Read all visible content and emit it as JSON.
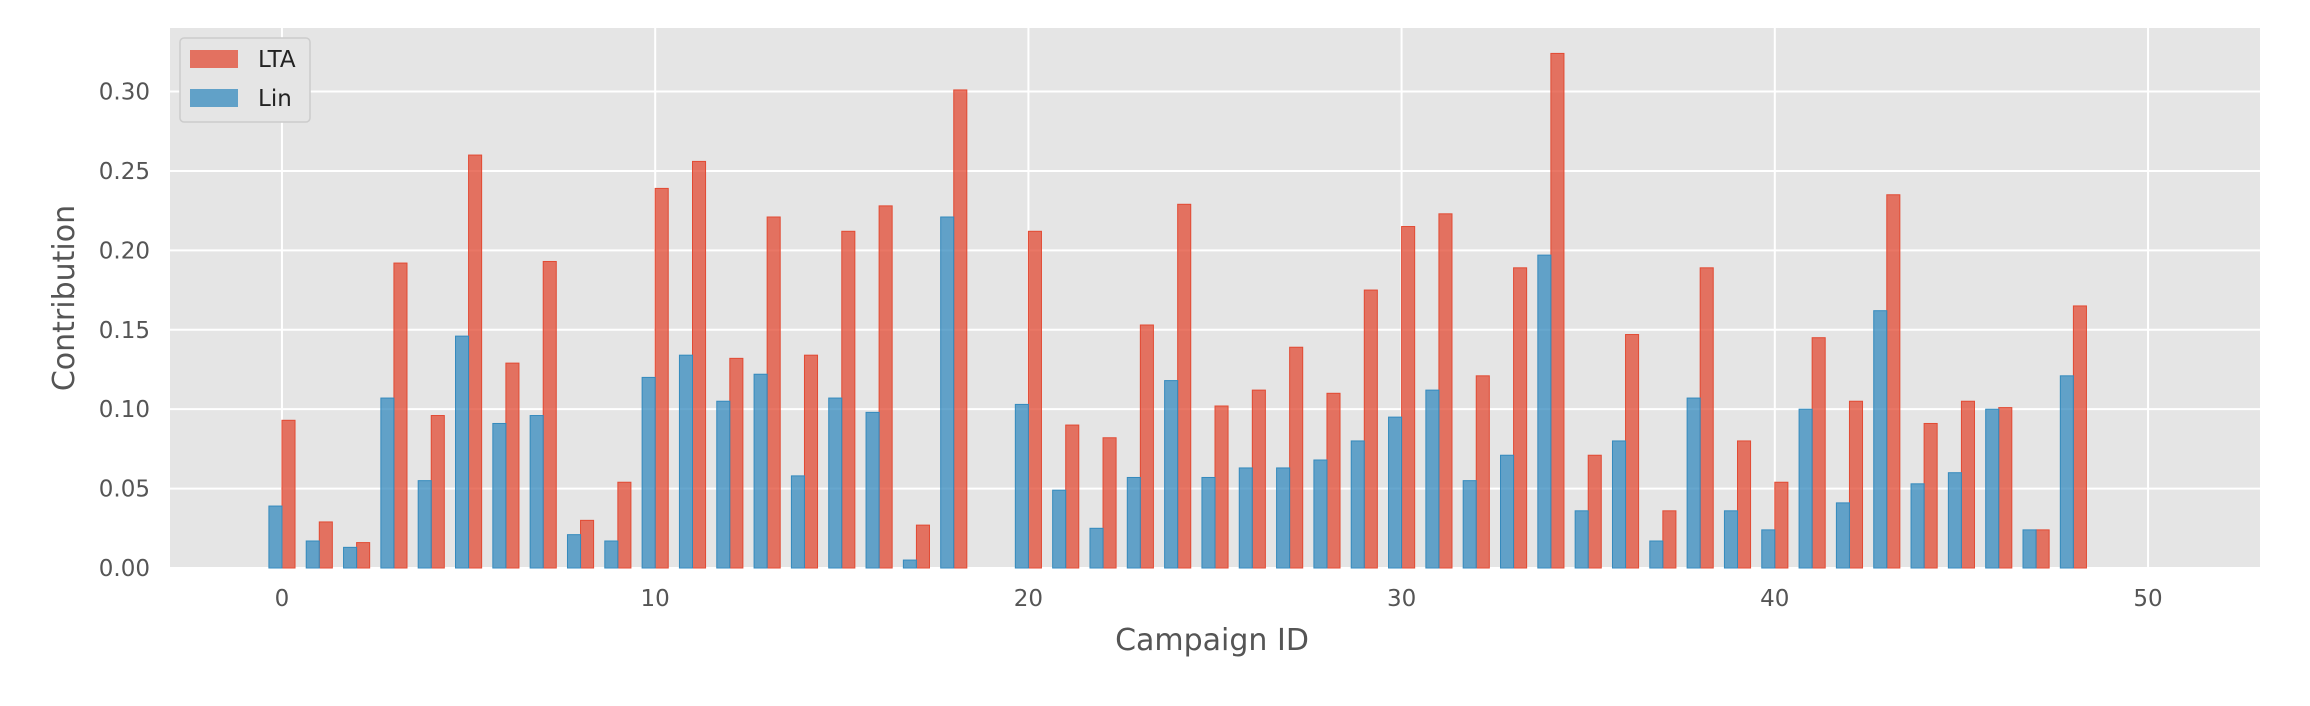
{
  "chart_data": {
    "type": "bar",
    "title": "",
    "xlabel": "Campaign ID",
    "ylabel": "Contribution",
    "xlim": [
      -3,
      53
    ],
    "ylim": [
      0,
      0.34
    ],
    "xticks": [
      "0",
      "10",
      "20",
      "30",
      "40",
      "50"
    ],
    "yticks": [
      "0.00",
      "0.05",
      "0.10",
      "0.15",
      "0.20",
      "0.25",
      "0.30"
    ],
    "grid": true,
    "legend_position": "top-left",
    "x": [
      0,
      1,
      2,
      3,
      4,
      5,
      6,
      7,
      8,
      9,
      10,
      11,
      12,
      13,
      14,
      15,
      16,
      17,
      18,
      19,
      20,
      21,
      22,
      23,
      24,
      25,
      26,
      27,
      28,
      29,
      30,
      31,
      32,
      33,
      34,
      35,
      36,
      37,
      38,
      39,
      40,
      41,
      42,
      43,
      44,
      45,
      46,
      47,
      48,
      49
    ],
    "series": [
      {
        "name": "LTA",
        "color": "#E24A33",
        "values": [
          0.093,
          0.029,
          0.016,
          0.192,
          0.096,
          0.26,
          0.129,
          0.193,
          0.03,
          0.054,
          0.239,
          0.256,
          0.132,
          0.221,
          0.134,
          0.212,
          0.228,
          0.027,
          0.301,
          0.0,
          0.212,
          0.09,
          0.082,
          0.153,
          0.229,
          0.102,
          0.112,
          0.139,
          0.11,
          0.175,
          0.215,
          0.223,
          0.121,
          0.189,
          0.324,
          0.071,
          0.147,
          0.036,
          0.189,
          0.08,
          0.054,
          0.145,
          0.105,
          0.235,
          0.091,
          0.105,
          0.101,
          0.024,
          0.165,
          0.0
        ]
      },
      {
        "name": "Lin",
        "color": "#348ABD",
        "values": [
          0.039,
          0.017,
          0.013,
          0.107,
          0.055,
          0.146,
          0.091,
          0.096,
          0.021,
          0.017,
          0.12,
          0.134,
          0.105,
          0.122,
          0.058,
          0.107,
          0.098,
          0.005,
          0.221,
          0.0,
          0.103,
          0.049,
          0.025,
          0.057,
          0.118,
          0.057,
          0.063,
          0.063,
          0.068,
          0.08,
          0.095,
          0.112,
          0.055,
          0.071,
          0.197,
          0.036,
          0.08,
          0.017,
          0.107,
          0.036,
          0.024,
          0.1,
          0.041,
          0.162,
          0.053,
          0.06,
          0.1,
          0.024,
          0.121,
          0.0
        ]
      }
    ]
  }
}
